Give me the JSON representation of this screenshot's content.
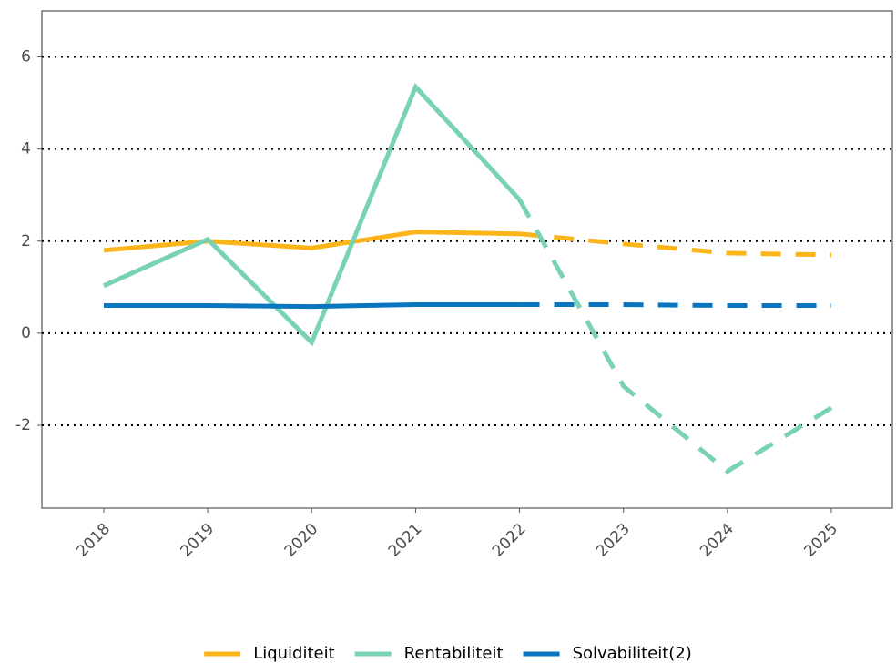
{
  "chart_data": {
    "type": "line",
    "categories": [
      "2018",
      "2019",
      "2020",
      "2021",
      "2022",
      "2023",
      "2024",
      "2025"
    ],
    "series": [
      {
        "name": "Liquiditeit",
        "color": "#fbb41a",
        "values": [
          1.8,
          2.0,
          1.85,
          2.2,
          2.16,
          1.94,
          1.74,
          1.7
        ]
      },
      {
        "name": "Rentabiliteit",
        "color": "#79d2b6",
        "values": [
          1.03,
          2.04,
          -0.2,
          5.35,
          2.9,
          -1.15,
          -3.0,
          -1.62
        ]
      },
      {
        "name": "Solvabiliteit(2)",
        "color": "#0a75bf",
        "values": [
          0.6,
          0.6,
          0.58,
          0.62,
          0.62,
          0.62,
          0.6,
          0.6
        ]
      }
    ],
    "dashed_from": 4,
    "ylim": [
      -3.8,
      7.0
    ],
    "yticks": [
      -2,
      0,
      2,
      4,
      6
    ],
    "grid": true,
    "legend": "bottom"
  }
}
